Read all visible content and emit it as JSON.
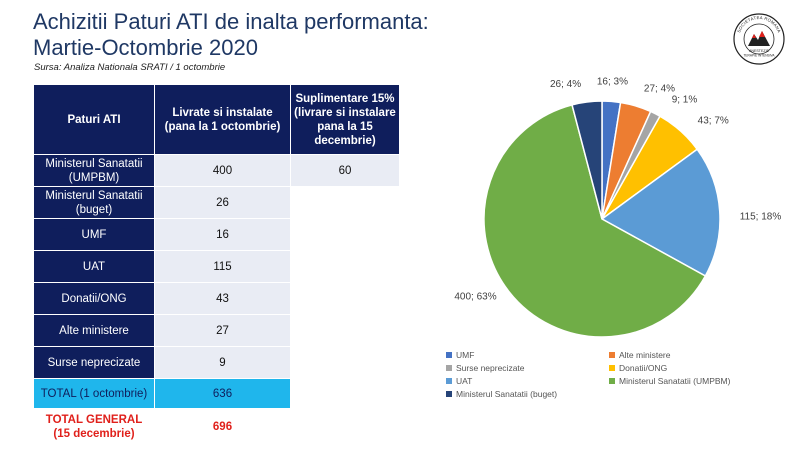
{
  "header": {
    "title_line1": "Achizitii Paturi ATI de inalta performanta:",
    "title_line2": "Martie-Octombrie 2020",
    "source": "Sursa: Analiza Nationala SRATI / 1 octombrie"
  },
  "logo": {
    "icon": "srati-logo-icon",
    "text_top": "SOCIETATEA ROMANA",
    "text_bottom1": "ANESTEZIE",
    "text_bottom2": "TERAPIE INTENSIVA"
  },
  "table": {
    "headers": [
      "Paturi ATI",
      "Livrate si instalate (pana la 1 octombrie)",
      "Suplimentare 15% (livrare si instalare pana la 15 decembrie)"
    ],
    "rows": [
      {
        "name": "Ministerul Sanatatii (UMPBM)",
        "delivered": "400",
        "extra": "60"
      },
      {
        "name": "Ministerul Sanatatii (buget)",
        "delivered": "26",
        "extra": ""
      },
      {
        "name": "UMF",
        "delivered": "16",
        "extra": ""
      },
      {
        "name": "UAT",
        "delivered": "115",
        "extra": ""
      },
      {
        "name": "Donatii/ONG",
        "delivered": "43",
        "extra": ""
      },
      {
        "name": "Alte ministere",
        "delivered": "27",
        "extra": ""
      },
      {
        "name": "Surse neprecizate",
        "delivered": "9",
        "extra": ""
      }
    ],
    "total_label": "TOTAL (1 octombrie)",
    "total_value": "636",
    "grand_label": "TOTAL GENERAL (15 decembrie)",
    "grand_value": "696"
  },
  "chart_data": {
    "type": "pie",
    "slices": [
      {
        "name": "UMF",
        "value": 16,
        "percent": 3,
        "label": "16; 3%",
        "color": "#4472c4"
      },
      {
        "name": "Alte ministere",
        "value": 27,
        "percent": 4,
        "label": "27; 4%",
        "color": "#ed7d31"
      },
      {
        "name": "Surse neprecizate",
        "value": 9,
        "percent": 1,
        "label": "9; 1%",
        "color": "#a5a5a5"
      },
      {
        "name": "Donatii/ONG",
        "value": 43,
        "percent": 7,
        "label": "43; 7%",
        "color": "#ffc000"
      },
      {
        "name": "UAT",
        "value": 115,
        "percent": 18,
        "label": "115; 18%",
        "color": "#5b9bd5"
      },
      {
        "name": "Ministerul Sanatatii (UMPBM)",
        "value": 400,
        "percent": 63,
        "label": "400; 63%",
        "color": "#70ad47"
      },
      {
        "name": "Ministerul Sanatatii (buget)",
        "value": 26,
        "percent": 4,
        "label": "26; 4%",
        "color": "#264478"
      }
    ],
    "legend_position": "bottom",
    "legend": [
      "UMF",
      "Alte ministere",
      "Surse neprecizate",
      "Donatii/ONG",
      "UAT",
      "Ministerul Sanatatii (UMPBM)",
      "Ministerul Sanatatii (buget)"
    ]
  }
}
